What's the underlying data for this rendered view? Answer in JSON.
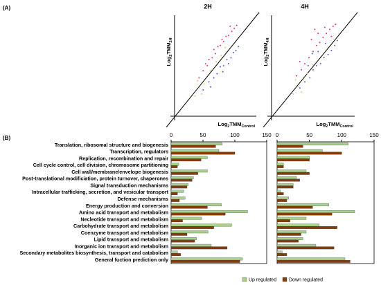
{
  "panels": [
    "(A)",
    "(B)"
  ],
  "chart_data": [
    {
      "type": "scatter",
      "title": "2H",
      "xlabel": [
        "Log",
        "2",
        "TMM",
        "Control"
      ],
      "ylabel": [
        "Log",
        "2",
        "TMM",
        "2H"
      ],
      "xlim": [
        0,
        10
      ],
      "ylim": [
        0,
        10
      ],
      "series": [
        {
          "color": "#e0307a",
          "x": [
            3.0,
            3.5,
            4.0,
            4.2,
            4.6,
            5.0,
            5.3,
            5.6,
            6.0,
            6.3,
            6.6,
            7.0,
            7.3,
            4.8,
            5.8,
            6.8,
            3.8,
            7.6
          ],
          "y": [
            3.8,
            4.5,
            5.0,
            5.6,
            5.8,
            6.2,
            6.9,
            7.0,
            7.4,
            7.9,
            8.0,
            8.4,
            8.7,
            6.6,
            7.6,
            8.9,
            5.2,
            9.0
          ]
        },
        {
          "color": "#4a5ad8",
          "x": [
            3.5,
            4.2,
            4.8,
            5.2,
            5.6,
            6.0,
            6.4,
            6.9,
            7.2,
            7.5,
            5.9,
            6.6,
            4.4,
            7.8
          ],
          "y": [
            2.6,
            3.4,
            3.8,
            4.2,
            4.9,
            5.0,
            5.6,
            5.8,
            6.3,
            6.5,
            4.4,
            5.2,
            2.9,
            6.9
          ]
        },
        {
          "color": "#e8c070",
          "x": [
            2.5,
            3.0,
            3.6,
            4.4,
            5.1,
            5.7,
            6.2,
            2.8,
            3.3
          ],
          "y": [
            2.0,
            2.8,
            3.2,
            4.5,
            5.4,
            6.0,
            6.8,
            3.5,
            2.2
          ]
        }
      ]
    },
    {
      "type": "scatter",
      "title": "4H",
      "xlabel": [
        "Log",
        "2",
        "TMM",
        "Control"
      ],
      "ylabel": [
        "Log",
        "2",
        "TMM",
        "4H"
      ],
      "xlim": [
        0,
        10
      ],
      "ylim": [
        0,
        10
      ],
      "series": [
        {
          "color": "#e0307a",
          "x": [
            3.0,
            3.6,
            4.0,
            4.5,
            5.0,
            5.4,
            5.8,
            6.2,
            6.6,
            7.0,
            7.4,
            7.7,
            4.8,
            5.6,
            6.4,
            7.2,
            3.4,
            5.2
          ],
          "y": [
            4.0,
            4.6,
            5.2,
            5.8,
            6.4,
            7.0,
            7.3,
            7.8,
            8.2,
            8.6,
            8.9,
            9.1,
            7.6,
            8.2,
            8.8,
            7.9,
            5.4,
            8.6
          ]
        },
        {
          "color": "#4a5ad8",
          "x": [
            3.4,
            4.0,
            4.6,
            5.0,
            5.4,
            5.9,
            6.3,
            6.8,
            7.2,
            7.6,
            4.4,
            5.6,
            6.5,
            7.9,
            4.9
          ],
          "y": [
            2.8,
            3.4,
            3.8,
            4.6,
            5.0,
            5.2,
            5.8,
            6.1,
            6.5,
            7.0,
            5.0,
            6.4,
            7.2,
            7.5,
            6.2
          ]
        },
        {
          "color": "#e8c070",
          "x": [
            2.6,
            3.2,
            3.8,
            4.3,
            5.0,
            2.9,
            3.6
          ],
          "y": [
            2.2,
            2.9,
            3.6,
            4.2,
            5.1,
            3.6,
            2.4
          ]
        }
      ]
    },
    {
      "type": "hbar",
      "categories": [
        "Translation, ribosomal structure and biogenesis",
        "Transcription, regulators",
        "Replication, recombination and repair",
        "Cell cycle control, cell division, chromosome partitioning",
        "Cell wall/membrane/envelope biogenesis",
        "Post-translational modificiation, protein turnover, chaperones",
        "Signal transduction mechanisms",
        "Intracellular trafficking, secretion, and vesicular transport",
        "Defense mechanisms",
        "Energy production and conversion",
        "Amino acid transport and metabolism",
        "Necleotide transport and metabolism",
        "Carbohydrate transport and metabolism",
        "Coenzyme transport and metabolism",
        "Lipid transport and metabolism",
        "Inorganic ion transport and metabolism",
        "Secondary metabolites biosynthesis, transport and catabolism",
        "General fuction prediction only"
      ],
      "xlim": [
        0,
        150
      ],
      "xticks": [
        0,
        50,
        100,
        150
      ],
      "series": [
        {
          "name": "Up regulated",
          "color": "#a9d18e",
          "values": [
            80,
            75,
            57,
            12,
            57,
            35,
            27,
            20,
            22,
            79,
            120,
            48,
            95,
            58,
            40,
            63,
            10,
            112
          ]
        },
        {
          "name": "Down regulated",
          "color": "#843c0c",
          "values": [
            70,
            100,
            47,
            10,
            42,
            33,
            25,
            10,
            13,
            57,
            85,
            18,
            67,
            25,
            37,
            88,
            15,
            108
          ]
        }
      ]
    },
    {
      "type": "hbar",
      "xlim": [
        0,
        150
      ],
      "xticks": [
        0,
        50,
        100,
        150
      ],
      "series": [
        {
          "color": "#a9d18e",
          "values": [
            110,
            70,
            50,
            10,
            45,
            30,
            25,
            5,
            18,
            80,
            120,
            45,
            65,
            45,
            40,
            60,
            8,
            105
          ]
        },
        {
          "color": "#843c0c",
          "values": [
            40,
            100,
            50,
            10,
            50,
            35,
            25,
            10,
            15,
            55,
            85,
            20,
            93,
            37,
            33,
            88,
            15,
            113
          ]
        }
      ]
    }
  ]
}
